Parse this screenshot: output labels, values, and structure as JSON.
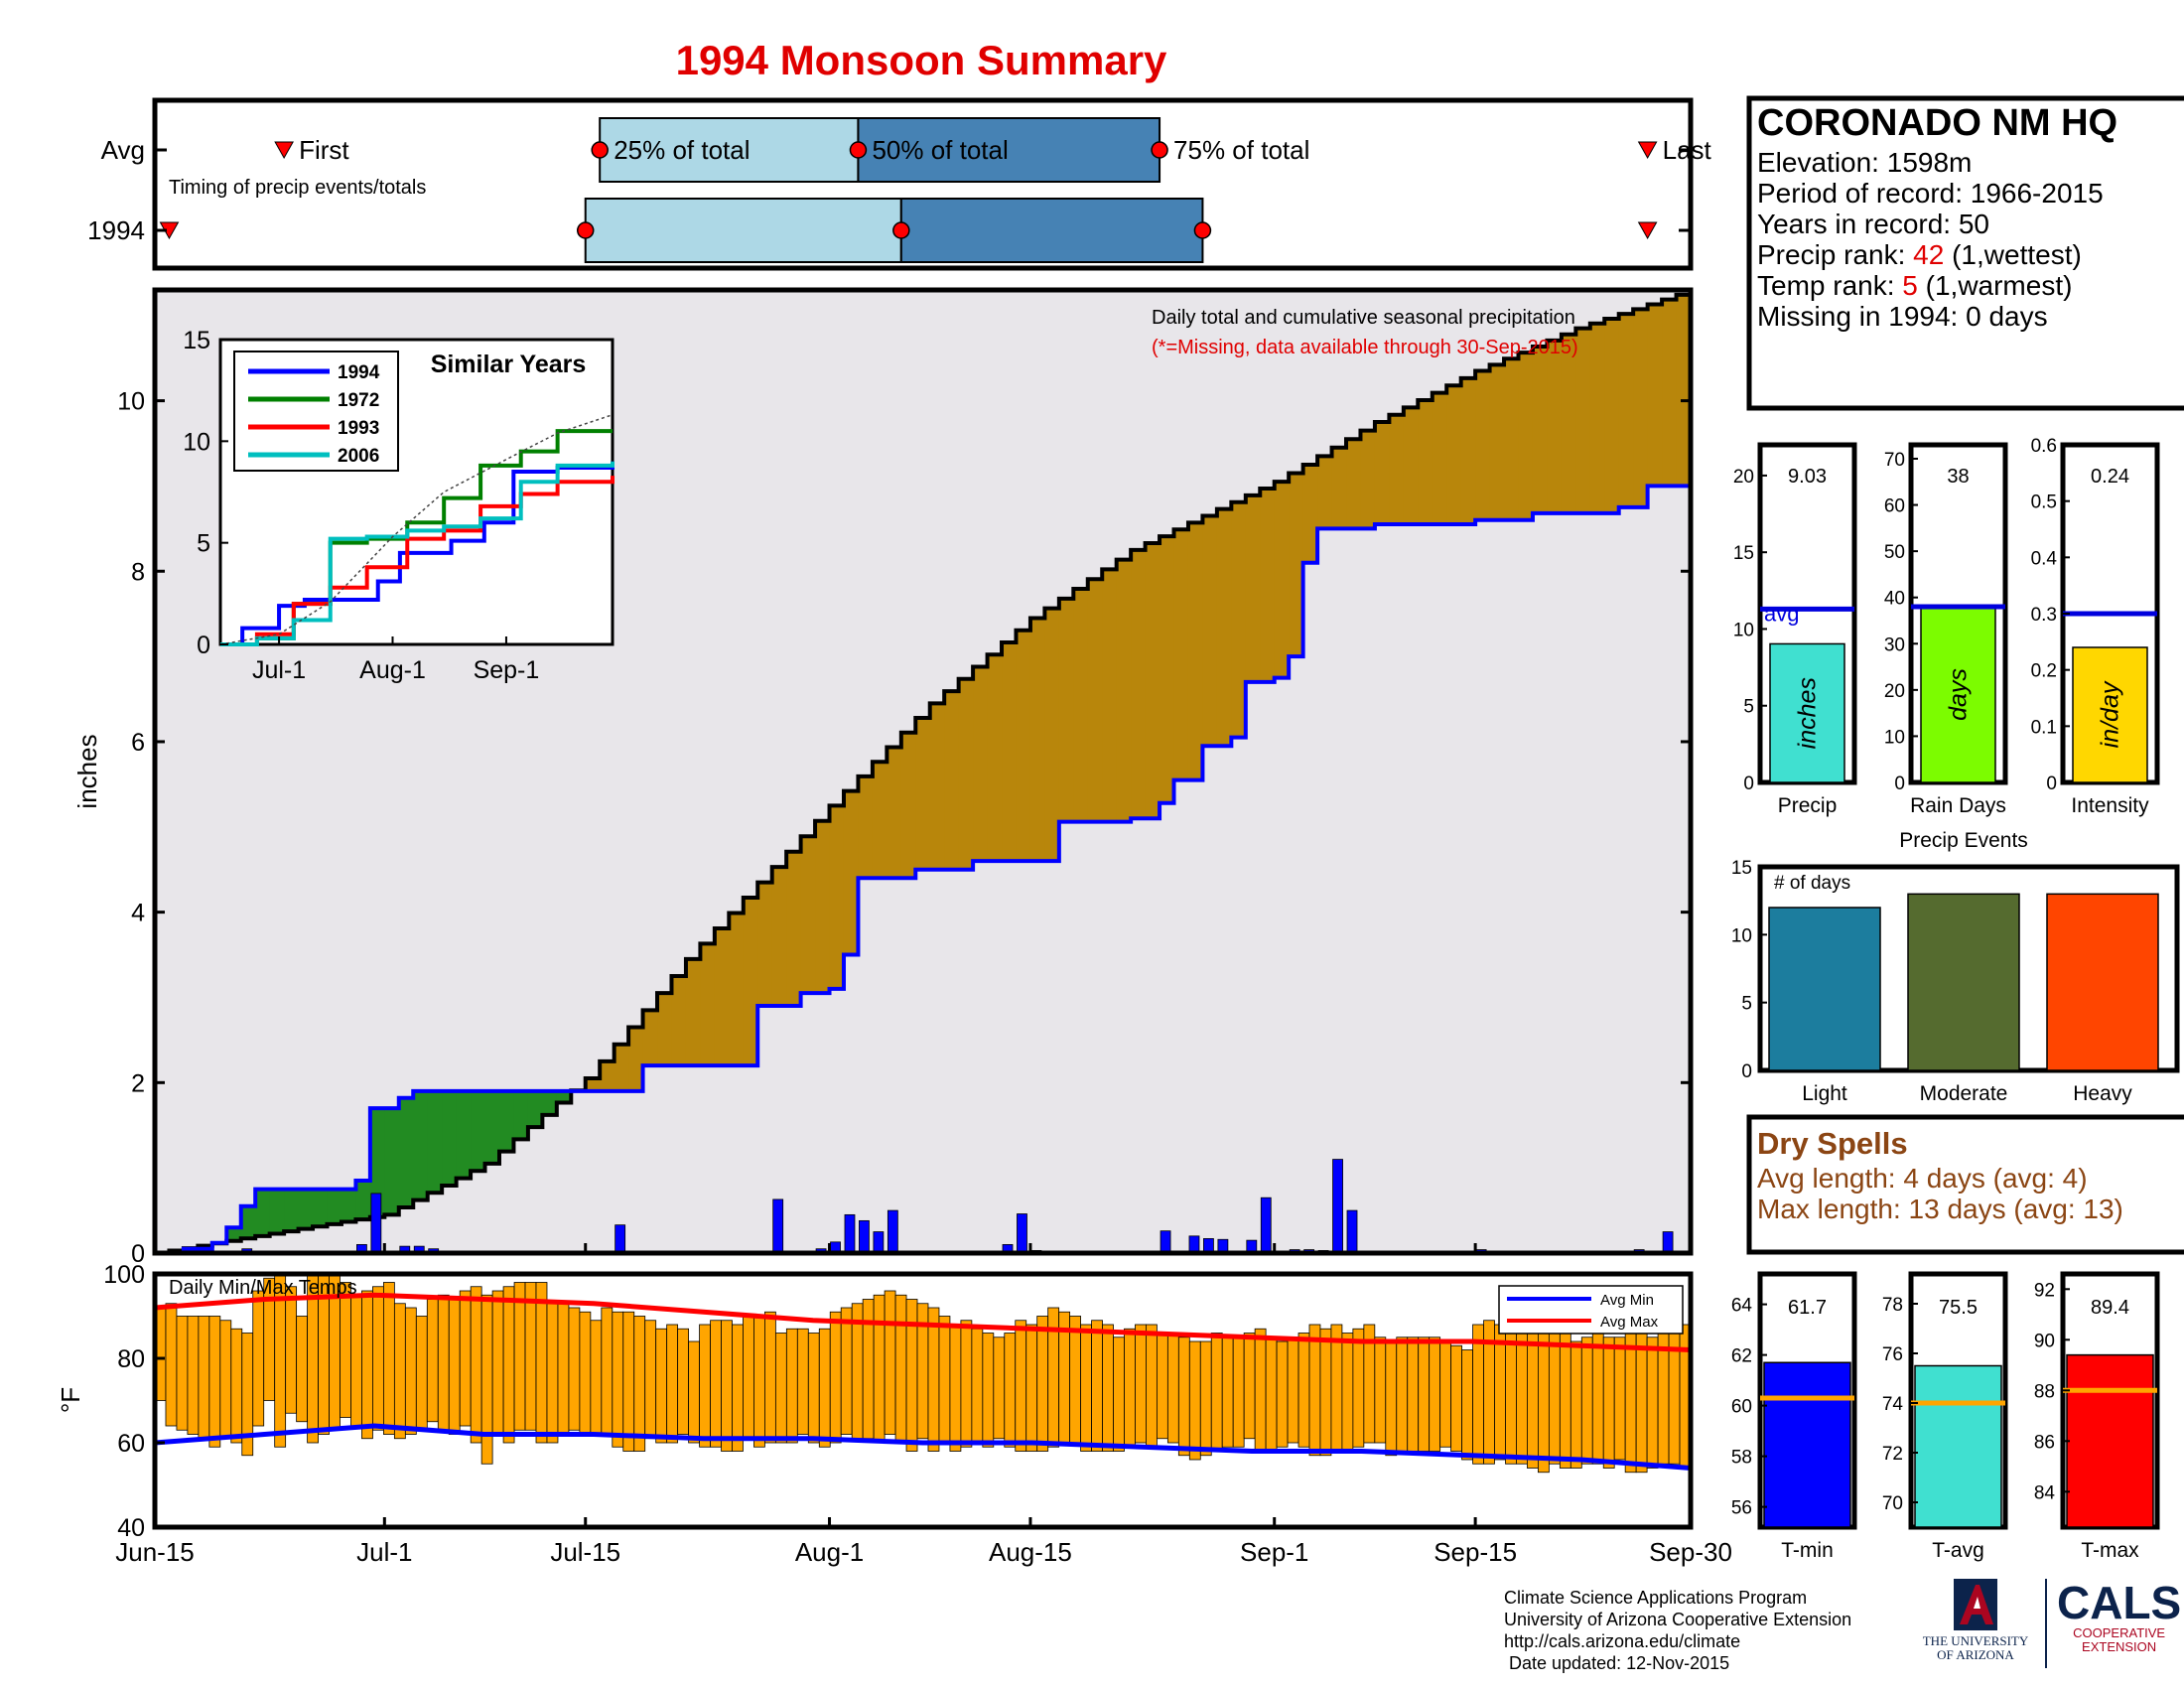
{
  "title": "1994 Monsoon Summary",
  "station": {
    "name": "CORONADO NM HQ",
    "elevation": "Elevation: 1598m",
    "period": "Period of record: 1966-2015",
    "years": "Years in record: 50",
    "precip_rank_prefix": "Precip rank: ",
    "precip_rank_value": "42",
    "precip_rank_suffix": " (1,wettest)",
    "temp_rank_prefix": "Temp rank: ",
    "temp_rank_value": "5",
    "temp_rank_suffix": " (1,warmest)",
    "missing": "Missing in 1994: 0 days"
  },
  "dry_spells": {
    "title": "Dry Spells",
    "avg_length": "Avg length: 4 days (avg: 4)",
    "max_length": "Max length: 13 days (avg: 13)"
  },
  "footer": {
    "line1": "Climate Science Applications Program",
    "line2": "University of Arizona Cooperative Extension",
    "line3": "http://cals.arizona.edu/climate",
    "line4": " Date updated: 12-Nov-2015"
  },
  "logos": {
    "ua_line1": "THE UNIVERSITY",
    "ua_line2": "OF ARIZONA",
    "cals": "CALS",
    "cals_sub1": "COOPERATIVE",
    "cals_sub2": "EXTENSION"
  },
  "colors": {
    "cum_1994": "#0000ff",
    "cum_avg": "#000000",
    "above_avg_fill": "#228b22",
    "below_avg_fill": "#b8860b",
    "background_fill": "#e8e6ea",
    "daily_bar": "#0000ff",
    "temp_bar": "#ffa500",
    "avg_min": "#0000ff",
    "avg_max": "#ff0000"
  },
  "chart_data": [
    {
      "id": "timing",
      "type": "timeline",
      "title": "Timing of precip events/totals",
      "rows": [
        "Avg",
        "1994"
      ],
      "labels": {
        "first": "First",
        "q25": "25% of total",
        "q50": "50% of total",
        "q75": "75% of total",
        "last": "Last"
      },
      "x_range": [
        "Jun-15",
        "Sep-30"
      ],
      "avg": {
        "first": "Jun-24",
        "q25": "Jul-16",
        "q50": "Aug-03",
        "q75": "Aug-24",
        "last": "Sep-27"
      },
      "y1994": {
        "first": "Jun-16",
        "q25": "Jul-15",
        "q50": "Aug-06",
        "q75": "Aug-27",
        "last": "Sep-27"
      },
      "box_colors": [
        "#add8e6",
        "#4682b4"
      ]
    },
    {
      "id": "cumulative",
      "type": "area",
      "ylabel": "inches",
      "ylim": [
        0,
        11.3
      ],
      "yticks": [
        0,
        2,
        4,
        6,
        8,
        10
      ],
      "xticks": [
        "Jun-15",
        "Jul-1",
        "Jul-15",
        "Aug-1",
        "Aug-15",
        "Sep-1",
        "Sep-15",
        "Sep-30"
      ],
      "annotation": "Daily total and cumulative seasonal precipitation",
      "annotation_missing": "(*=Missing, data available through 30-Sep-2015)",
      "series": [
        {
          "name": "Average cumulative",
          "x": [
            "Jun-15",
            "Jun-22",
            "Jul-1",
            "Jul-8",
            "Jul-15",
            "Jul-22",
            "Aug-1",
            "Aug-8",
            "Aug-15",
            "Aug-22",
            "Sep-1",
            "Sep-8",
            "Sep-15",
            "Sep-22",
            "Sep-30"
          ],
          "values": [
            0,
            0.2,
            0.45,
            1.05,
            2.05,
            3.45,
            5.25,
            6.45,
            7.45,
            8.25,
            9.05,
            9.75,
            10.35,
            10.85,
            11.3
          ]
        },
        {
          "name": "1994 cumulative",
          "steps": [
            [
              "Jun-15",
              0
            ],
            [
              "Jun-17",
              0.05
            ],
            [
              "Jun-19",
              0.12
            ],
            [
              "Jun-20",
              0.3
            ],
            [
              "Jun-21",
              0.55
            ],
            [
              "Jun-22",
              0.75
            ],
            [
              "Jun-29",
              0.85
            ],
            [
              "Jun-30",
              1.7
            ],
            [
              "Jul-2",
              1.82
            ],
            [
              "Jul-3",
              1.9
            ],
            [
              "Jul-19",
              2.2
            ],
            [
              "Jul-27",
              2.9
            ],
            [
              "Jul-30",
              3.05
            ],
            [
              "Aug-1",
              3.1
            ],
            [
              "Aug-2",
              3.5
            ],
            [
              "Aug-3",
              4.4
            ],
            [
              "Aug-7",
              4.5
            ],
            [
              "Aug-11",
              4.6
            ],
            [
              "Aug-17",
              5.06
            ],
            [
              "Aug-22",
              5.1
            ],
            [
              "Aug-24",
              5.28
            ],
            [
              "Aug-25",
              5.55
            ],
            [
              "Aug-27",
              5.95
            ],
            [
              "Aug-29",
              6.05
            ],
            [
              "Aug-30",
              6.7
            ],
            [
              "Sep-1",
              6.75
            ],
            [
              "Sep-2",
              7.0
            ],
            [
              "Sep-3",
              8.1
            ],
            [
              "Sep-4",
              8.5
            ],
            [
              "Sep-8",
              8.55
            ],
            [
              "Sep-15",
              8.6
            ],
            [
              "Sep-19",
              8.68
            ],
            [
              "Sep-25",
              8.75
            ],
            [
              "Sep-27",
              9.0
            ],
            [
              "Sep-30",
              9.03
            ]
          ]
        }
      ],
      "daily_precip": [
        [
          "Jun-16",
          0.03
        ],
        [
          "Jun-21",
          0.05
        ],
        [
          "Jun-23",
          0.02
        ],
        [
          "Jun-29",
          0.1
        ],
        [
          "Jun-30",
          0.7
        ],
        [
          "Jul-2",
          0.08
        ],
        [
          "Jul-3",
          0.08
        ],
        [
          "Jul-4",
          0.05
        ],
        [
          "Jul-17",
          0.33
        ],
        [
          "Jul-28",
          0.63
        ],
        [
          "Jul-31",
          0.05
        ],
        [
          "Aug-1",
          0.13
        ],
        [
          "Aug-2",
          0.45
        ],
        [
          "Aug-3",
          0.38
        ],
        [
          "Aug-4",
          0.25
        ],
        [
          "Aug-5",
          0.5
        ],
        [
          "Aug-13",
          0.1
        ],
        [
          "Aug-14",
          0.46
        ],
        [
          "Aug-15",
          0.03
        ],
        [
          "Aug-24",
          0.26
        ],
        [
          "Aug-26",
          0.2
        ],
        [
          "Aug-27",
          0.17
        ],
        [
          "Aug-28",
          0.16
        ],
        [
          "Aug-30",
          0.15
        ],
        [
          "Aug-31",
          0.65
        ],
        [
          "Sep-2",
          0.04
        ],
        [
          "Sep-3",
          0.04
        ],
        [
          "Sep-4",
          0.03
        ],
        [
          "Sep-5",
          1.1
        ],
        [
          "Sep-6",
          0.5
        ],
        [
          "Sep-15",
          0.04
        ],
        [
          "Sep-26",
          0.04
        ],
        [
          "Sep-28",
          0.25
        ]
      ]
    },
    {
      "id": "similar_years",
      "type": "line",
      "title": "Similar Years",
      "ylim": [
        0,
        15
      ],
      "yticks": [
        0,
        5,
        10,
        15
      ],
      "xticks": [
        "Jul-1",
        "Aug-1",
        "Sep-1"
      ],
      "series": [
        {
          "name": "1994",
          "color": "#0000ff",
          "x": [
            "Jun-15",
            "Jun-21",
            "Jul-1",
            "Jul-8",
            "Jul-28",
            "Aug-3",
            "Aug-17",
            "Aug-26",
            "Sep-3",
            "Sep-15",
            "Sep-30"
          ],
          "values": [
            0,
            0.8,
            1.9,
            2.2,
            3.1,
            4.5,
            5.1,
            6.0,
            8.5,
            8.7,
            9.0
          ]
        },
        {
          "name": "1972",
          "color": "#008000",
          "x": [
            "Jun-15",
            "Jun-25",
            "Jul-5",
            "Jul-15",
            "Jul-25",
            "Aug-5",
            "Aug-15",
            "Aug-25",
            "Sep-5",
            "Sep-15",
            "Sep-30"
          ],
          "values": [
            0,
            0.3,
            2.0,
            5.0,
            5.2,
            6.0,
            7.2,
            8.8,
            9.5,
            10.5,
            10.5
          ]
        },
        {
          "name": "1993",
          "color": "#ff0000",
          "x": [
            "Jun-15",
            "Jun-25",
            "Jul-5",
            "Jul-15",
            "Jul-25",
            "Aug-5",
            "Aug-15",
            "Aug-25",
            "Sep-5",
            "Sep-15",
            "Sep-30"
          ],
          "values": [
            0,
            0.5,
            2.0,
            2.8,
            3.8,
            5.2,
            5.6,
            6.8,
            7.4,
            8.0,
            8.3
          ]
        },
        {
          "name": "2006",
          "color": "#00bfbf",
          "x": [
            "Jun-15",
            "Jun-25",
            "Jul-5",
            "Jul-15",
            "Jul-25",
            "Aug-5",
            "Aug-15",
            "Aug-25",
            "Sep-5",
            "Sep-15",
            "Sep-30"
          ],
          "values": [
            0,
            0.3,
            1.2,
            5.2,
            5.3,
            5.6,
            5.8,
            6.2,
            8.0,
            8.8,
            9.0
          ]
        },
        {
          "name": "Average",
          "color": "#444444",
          "x": [
            "Jun-15",
            "Jul-1",
            "Jul-15",
            "Aug-1",
            "Aug-15",
            "Sep-1",
            "Sep-15",
            "Sep-30"
          ],
          "values": [
            0,
            0.5,
            2.1,
            5.3,
            7.5,
            9.1,
            10.4,
            11.3
          ]
        }
      ]
    },
    {
      "id": "temps",
      "type": "bar",
      "title": "Daily Min/Max Temps",
      "ylabel": "°F",
      "ylim": [
        40,
        100
      ],
      "yticks": [
        40,
        60,
        80,
        100
      ],
      "legend": [
        "Avg Min",
        "Avg Max"
      ],
      "legend_position": "top-right",
      "daily_max": [
        92,
        93,
        90,
        90,
        90,
        90,
        89,
        87,
        86,
        96,
        99,
        100,
        97,
        90,
        100,
        100,
        100,
        98,
        95,
        96,
        97,
        98,
        93,
        92,
        90,
        94,
        95,
        94,
        96,
        97,
        95,
        96,
        97,
        98,
        98,
        98,
        93,
        93,
        92,
        91,
        89,
        92,
        91,
        91,
        90,
        89,
        87,
        88,
        87,
        84,
        88,
        89,
        89,
        88,
        90,
        90,
        91,
        86,
        87,
        87,
        86,
        87,
        91,
        92,
        93,
        94,
        95,
        96,
        95,
        94,
        93,
        92,
        90,
        88,
        89,
        87,
        86,
        85,
        86,
        89,
        88,
        90,
        92,
        91,
        90,
        88,
        89,
        88,
        85,
        87,
        88,
        88,
        86,
        86,
        85,
        84,
        84,
        86,
        85,
        85,
        86,
        87,
        85,
        84,
        85,
        86,
        88,
        87,
        88,
        86,
        87,
        88,
        85,
        84,
        85,
        85,
        85,
        85,
        84,
        83,
        82,
        88,
        89,
        88,
        86,
        87,
        87,
        86,
        86,
        86,
        84,
        85,
        86,
        85,
        85,
        86,
        86,
        85,
        88,
        88,
        88
      ],
      "daily_min": [
        70,
        64,
        63,
        62,
        61,
        59,
        61,
        60,
        57,
        64,
        70,
        59,
        67,
        65,
        60,
        62,
        63,
        66,
        64,
        61,
        63,
        62,
        61,
        62,
        63,
        65,
        63,
        62,
        64,
        60,
        55,
        62,
        60,
        63,
        63,
        60,
        60,
        62,
        63,
        62,
        62,
        62,
        59,
        58,
        58,
        61,
        60,
        60,
        62,
        60,
        59,
        59,
        58,
        58,
        61,
        59,
        60,
        60,
        60,
        62,
        60,
        59,
        60,
        62,
        61,
        61,
        60,
        62,
        60,
        58,
        61,
        58,
        60,
        58,
        59,
        60,
        59,
        61,
        59,
        58,
        58,
        58,
        59,
        60,
        60,
        58,
        58,
        58,
        58,
        59,
        60,
        59,
        61,
        60,
        57,
        56,
        57,
        58,
        59,
        59,
        61,
        58,
        58,
        59,
        60,
        59,
        57,
        57,
        58,
        58,
        59,
        60,
        60,
        57,
        58,
        58,
        58,
        58,
        59,
        58,
        56,
        55,
        55,
        56,
        55,
        55,
        54,
        53,
        55,
        54,
        54,
        55,
        55,
        54,
        56,
        53,
        53,
        54,
        55,
        55,
        54
      ],
      "avg_max": [
        92,
        94,
        95,
        94,
        93,
        91,
        89,
        88,
        87,
        86,
        85,
        84,
        84,
        83,
        82
      ],
      "avg_min": [
        60,
        62,
        64,
        62,
        62,
        61,
        61,
        60,
        60,
        59,
        58,
        58,
        57,
        56,
        54
      ]
    },
    {
      "id": "precip_stats",
      "type": "bar",
      "panels": [
        {
          "label": "Precip",
          "value": 9.03,
          "value_text": "9.03",
          "avg": 11.3,
          "avg_label": "avg",
          "ylim": [
            0,
            22
          ],
          "yticks": [
            0,
            5,
            10,
            15,
            20
          ],
          "unit": "inches",
          "color": "#40e0d0"
        },
        {
          "label": "Rain Days",
          "value": 38,
          "value_text": "38",
          "avg": 38,
          "ylim": [
            0,
            73
          ],
          "yticks": [
            0,
            10,
            20,
            30,
            40,
            50,
            60,
            70
          ],
          "unit": "days",
          "color": "#7cfc00"
        },
        {
          "label": "Intensity",
          "value": 0.24,
          "value_text": "0.24",
          "avg": 0.3,
          "ylim": [
            0,
            0.6
          ],
          "yticks": [
            0,
            0.1,
            0.2,
            0.3,
            0.4,
            0.5,
            0.6
          ],
          "unit": "in/day",
          "color": "#ffd700"
        }
      ]
    },
    {
      "id": "precip_events",
      "type": "bar",
      "title": "Precip Events",
      "ylabel": "# of days",
      "ylim": [
        0,
        15
      ],
      "yticks": [
        0,
        5,
        10,
        15
      ],
      "categories": [
        "Light",
        "Moderate",
        "Heavy"
      ],
      "values": [
        12,
        13,
        13
      ],
      "colors": [
        "#1c7d9e",
        "#556b2f",
        "#ff4500"
      ]
    },
    {
      "id": "temp_stats",
      "type": "bar",
      "panels": [
        {
          "label": "T-min",
          "value": 61.7,
          "value_text": "61.7",
          "avg": 60.3,
          "ylim": [
            55.2,
            65.2
          ],
          "yticks": [
            56,
            58,
            60,
            62,
            64
          ],
          "color": "#0000ff"
        },
        {
          "label": "T-avg",
          "value": 75.5,
          "value_text": "75.5",
          "avg": 74.0,
          "ylim": [
            69.0,
            79.2
          ],
          "yticks": [
            70,
            72,
            74,
            76,
            78
          ],
          "color": "#40e0d0"
        },
        {
          "label": "T-max",
          "value": 89.4,
          "value_text": "89.4",
          "avg": 88.0,
          "ylim": [
            82.6,
            92.6
          ],
          "yticks": [
            84,
            86,
            88,
            90,
            92
          ],
          "color": "#ff0000"
        }
      ]
    }
  ]
}
